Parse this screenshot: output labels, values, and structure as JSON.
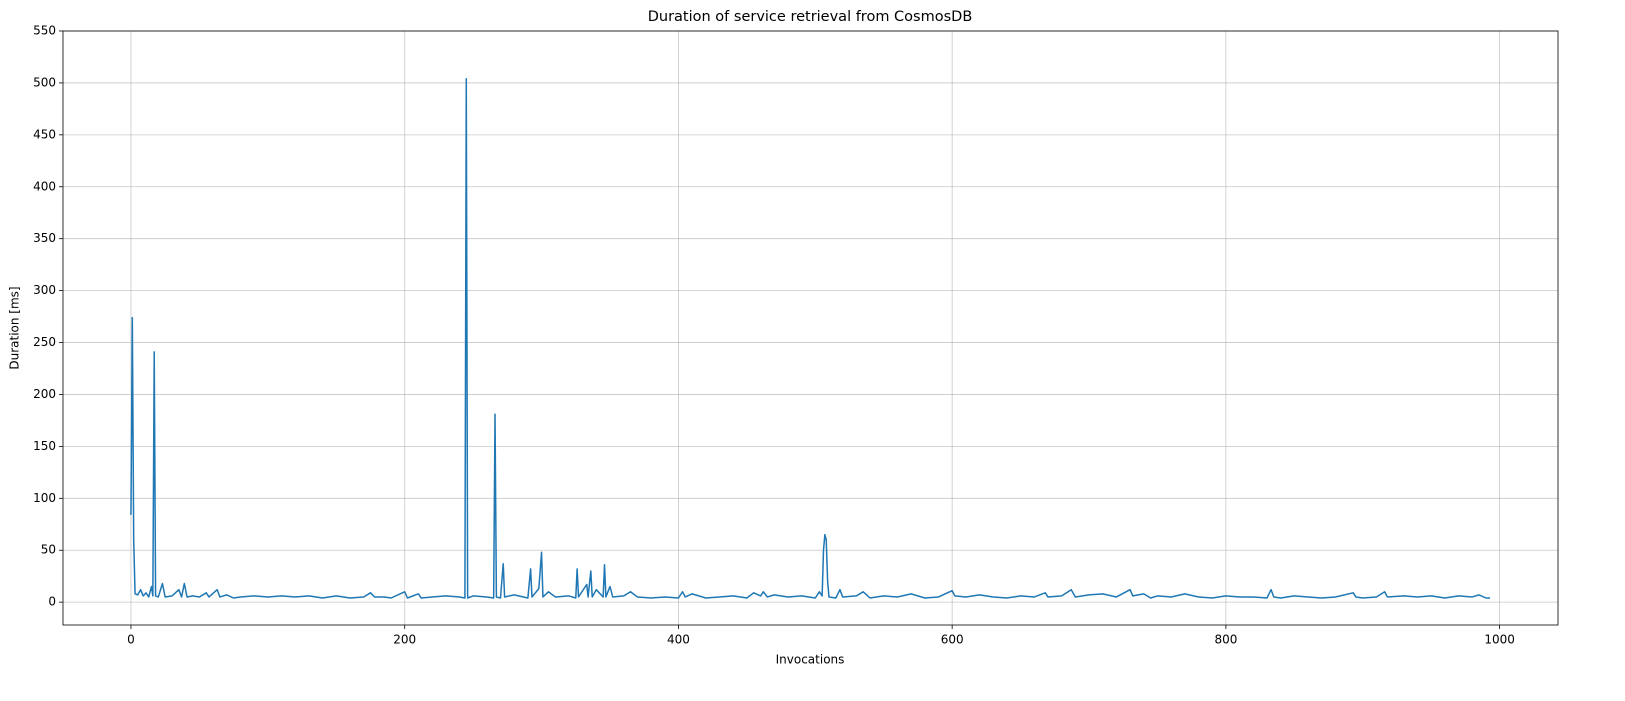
{
  "chart_data": {
    "type": "line",
    "title": "Duration of service retrieval from CosmosDB",
    "xlabel": "Invocations",
    "ylabel": "Duration [ms]",
    "x": [
      0,
      1,
      2,
      3,
      5,
      7,
      9,
      11,
      13,
      15,
      16,
      17,
      18,
      20,
      23,
      25,
      30,
      35,
      37,
      39,
      41,
      45,
      50,
      55,
      57,
      63,
      65,
      70,
      75,
      80,
      90,
      100,
      110,
      120,
      130,
      140,
      150,
      160,
      170,
      175,
      178,
      185,
      190,
      200,
      202,
      210,
      212,
      220,
      230,
      240,
      244,
      245,
      246,
      250,
      260,
      265,
      266,
      267,
      270,
      272,
      273,
      280,
      290,
      292,
      293,
      298,
      300,
      301,
      305,
      310,
      320,
      325,
      326,
      327,
      333,
      334,
      336,
      337,
      340,
      345,
      346,
      347,
      350,
      352,
      360,
      365,
      370,
      380,
      390,
      400,
      403,
      405,
      410,
      420,
      430,
      440,
      450,
      455,
      460,
      462,
      465,
      470,
      480,
      490,
      500,
      503,
      505,
      506,
      507,
      508,
      509,
      510,
      515,
      518,
      520,
      530,
      535,
      540,
      550,
      560,
      570,
      580,
      590,
      600,
      602,
      610,
      620,
      630,
      640,
      650,
      660,
      668,
      670,
      680,
      687,
      690,
      700,
      710,
      720,
      730,
      732,
      740,
      745,
      750,
      760,
      770,
      780,
      790,
      800,
      810,
      820,
      830,
      833,
      835,
      840,
      850,
      860,
      870,
      880,
      893,
      895,
      900,
      910,
      916,
      918,
      930,
      940,
      950,
      960,
      970,
      980,
      985,
      990,
      993
    ],
    "series": [
      {
        "name": "Duration",
        "color": "#1f77b4",
        "values": [
          84,
          274,
          60,
          8,
          7,
          12,
          6,
          9,
          5,
          15,
          6,
          241,
          6,
          5,
          18,
          5,
          6,
          12,
          5,
          18,
          5,
          6,
          5,
          9,
          5,
          12,
          5,
          7,
          4,
          5,
          6,
          5,
          6,
          5,
          6,
          4,
          6,
          4,
          5,
          9,
          5,
          5,
          4,
          10,
          4,
          8,
          4,
          5,
          6,
          5,
          4,
          504,
          4,
          6,
          5,
          4,
          181,
          5,
          4,
          37,
          5,
          7,
          4,
          32,
          5,
          13,
          48,
          5,
          10,
          5,
          6,
          4,
          32,
          5,
          17,
          5,
          30,
          5,
          12,
          5,
          36,
          5,
          15,
          5,
          6,
          10,
          5,
          4,
          5,
          4,
          10,
          5,
          8,
          4,
          5,
          6,
          4,
          9,
          6,
          10,
          5,
          7,
          5,
          6,
          4,
          10,
          6,
          50,
          65,
          60,
          20,
          5,
          4,
          12,
          5,
          6,
          10,
          4,
          6,
          5,
          8,
          4,
          5,
          11,
          6,
          5,
          7,
          5,
          4,
          6,
          5,
          9,
          5,
          6,
          12,
          5,
          7,
          8,
          5,
          12,
          6,
          8,
          4,
          6,
          5,
          8,
          5,
          4,
          6,
          5,
          5,
          4,
          12,
          5,
          4,
          6,
          5,
          4,
          5,
          9,
          5,
          4,
          5,
          10,
          5,
          6,
          5,
          6,
          4,
          6,
          5,
          7,
          4,
          4
        ]
      }
    ],
    "xlim": [
      -49.65,
      1042.65
    ],
    "ylim": [
      -22,
      550
    ],
    "xticks": [
      0,
      200,
      400,
      600,
      800,
      1000
    ],
    "yticks": [
      0,
      50,
      100,
      150,
      200,
      250,
      300,
      350,
      400,
      450,
      500,
      550
    ],
    "grid": true
  }
}
